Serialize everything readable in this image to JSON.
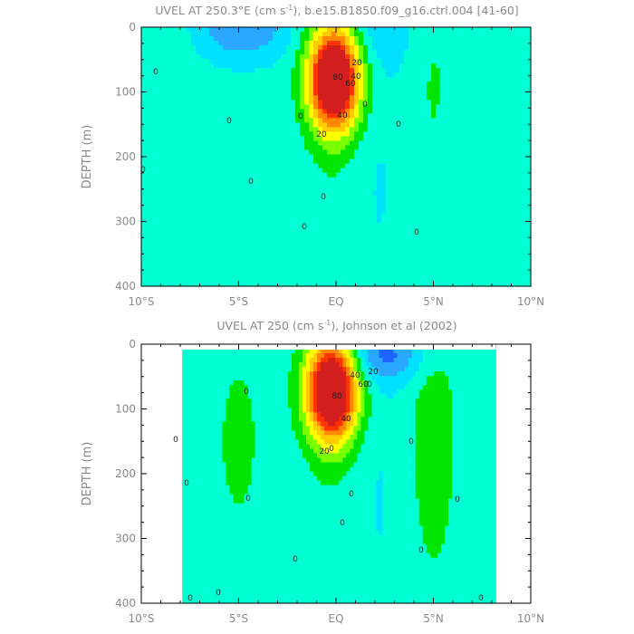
{
  "chart_data": [
    {
      "type": "heatmap",
      "subtype": "filled-contour-section",
      "title": "UVEL AT 250.3°E (cm s",
      "title_sup": "-1",
      "title_tail": "), b.e15.B1850.f09_g16.ctrl.004 [41-60]",
      "ylabel": "DEPTH (m)",
      "xlim": [
        -10,
        10
      ],
      "ylim": [
        400,
        0
      ],
      "xticks": [
        "10°S",
        "5°S",
        "EQ",
        "5°N",
        "10°N"
      ],
      "yticks": [
        "0",
        "100",
        "200",
        "300",
        "400"
      ],
      "data_x_extent": [
        -10,
        10
      ],
      "data_depth_max": 400,
      "contour_labels": [
        "0",
        "0",
        "0",
        "0",
        "0",
        "0",
        "0",
        "0",
        "0",
        "0",
        "20",
        "40",
        "20",
        "40",
        "60",
        "80"
      ],
      "color_scale": [
        "#1e64ff",
        "#2aa8ff",
        "#00e1ff",
        "#00ffd2",
        "#00e600",
        "#78ff00",
        "#ffff00",
        "#ffcc00",
        "#ff8800",
        "#ff3300",
        "#d21e1e"
      ],
      "maximum": {
        "lat": -0.1,
        "depth": 80,
        "value": 100
      },
      "features": [
        {
          "name": "core",
          "lat": -0.1,
          "depth": 80,
          "value": 100
        },
        {
          "name": "min-1",
          "lat": -4.8,
          "depth": 5,
          "value": -22
        },
        {
          "name": "min-2",
          "lat": 2.3,
          "depth": 5,
          "value": -10
        },
        {
          "name": "band-left",
          "lat": -9.2,
          "depth": 80,
          "value": 6
        },
        {
          "name": "band-right",
          "lat": 5.0,
          "depth": 80,
          "value": 8
        }
      ]
    },
    {
      "type": "heatmap",
      "subtype": "filled-contour-section",
      "title": "UVEL AT 250 (cm s",
      "title_sup": "-1",
      "title_tail": "), Johnson et al (2002)",
      "ylabel": "DEPTH (m)",
      "xlim": [
        -10,
        10
      ],
      "ylim": [
        400,
        0
      ],
      "xticks": [
        "10°S",
        "5°S",
        "EQ",
        "5°N",
        "10°N"
      ],
      "yticks": [
        "0",
        "100",
        "200",
        "300",
        "400"
      ],
      "data_x_extent": [
        -7.9,
        8.2
      ],
      "data_depth_max": 400,
      "contour_labels": [
        "0",
        "0",
        "0",
        "0",
        "0",
        "0",
        "0",
        "0",
        "0",
        "0",
        "0",
        "0",
        "0",
        "0",
        "0",
        "20",
        "40",
        "20",
        "40",
        "60",
        "80"
      ],
      "color_scale": [
        "#1e64ff",
        "#2aa8ff",
        "#00e1ff",
        "#00ffd2",
        "#00e600",
        "#78ff00",
        "#ffff00",
        "#ffcc00",
        "#ff8800",
        "#ff3300",
        "#d21e1e"
      ],
      "maximum": {
        "lat": -0.2,
        "depth": 70,
        "value": 100
      },
      "features": [
        {
          "name": "core",
          "lat": -0.2,
          "depth": 70,
          "value": 100
        },
        {
          "name": "min-1",
          "lat": 2.5,
          "depth": 15,
          "value": -24
        },
        {
          "name": "band-left",
          "lat": -5.0,
          "depth": 150,
          "value": 9
        },
        {
          "name": "band-right",
          "lat": 5.0,
          "depth": 140,
          "value": 14
        }
      ]
    }
  ]
}
